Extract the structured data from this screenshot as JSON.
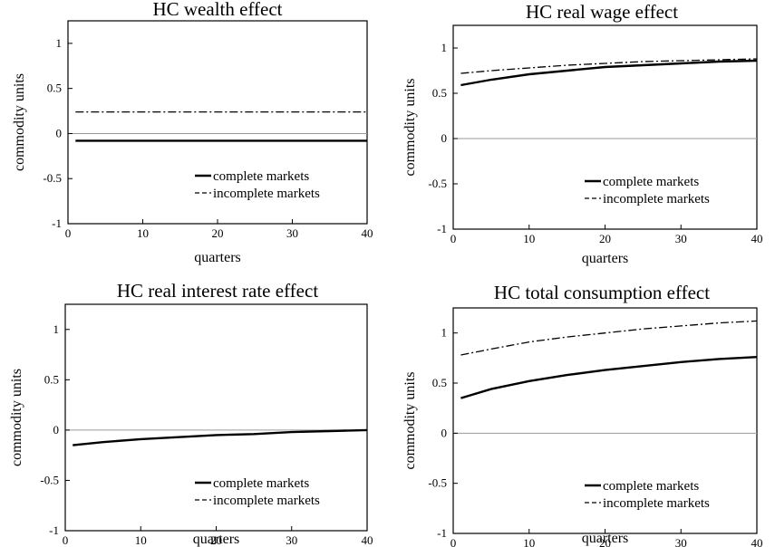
{
  "chart_data": [
    {
      "type": "line",
      "title": "HC wealth effect",
      "xlabel": "quarters",
      "ylabel": "commodity units",
      "xlim": [
        0,
        40
      ],
      "ylim": [
        -1,
        1.25
      ],
      "xticks": [
        "0",
        "10",
        "20",
        "30",
        "40"
      ],
      "yticks": [
        "-1",
        "-0.5",
        "0",
        "0.5",
        "1"
      ],
      "grid": false,
      "legend_position": "bottom-right",
      "series": [
        {
          "name": "complete markets",
          "style": "solid",
          "color": "#000000",
          "x": [
            1,
            5,
            10,
            15,
            20,
            25,
            30,
            35,
            40
          ],
          "y": [
            -0.08,
            -0.08,
            -0.08,
            -0.08,
            -0.08,
            -0.08,
            -0.08,
            -0.08,
            -0.08
          ]
        },
        {
          "name": "incomplete markets",
          "style": "dashdot",
          "color": "#000000",
          "x": [
            1,
            5,
            10,
            15,
            20,
            25,
            30,
            35,
            40
          ],
          "y": [
            0.24,
            0.24,
            0.24,
            0.24,
            0.24,
            0.24,
            0.24,
            0.24,
            0.24
          ]
        }
      ]
    },
    {
      "type": "line",
      "title": "HC real wage effect",
      "xlabel": "quarters",
      "ylabel": "commodity units",
      "xlim": [
        0,
        40
      ],
      "ylim": [
        -1,
        1.25
      ],
      "xticks": [
        "0",
        "10",
        "20",
        "30",
        "40"
      ],
      "yticks": [
        "-1",
        "-0.5",
        "0",
        "0.5",
        "1"
      ],
      "grid": false,
      "legend_position": "bottom-right",
      "series": [
        {
          "name": "complete markets",
          "style": "solid",
          "color": "#000000",
          "x": [
            1,
            5,
            10,
            15,
            20,
            25,
            30,
            35,
            40
          ],
          "y": [
            0.59,
            0.65,
            0.71,
            0.75,
            0.79,
            0.81,
            0.83,
            0.85,
            0.86
          ]
        },
        {
          "name": "incomplete markets",
          "style": "dashdot",
          "color": "#000000",
          "x": [
            1,
            5,
            10,
            15,
            20,
            25,
            30,
            35,
            40
          ],
          "y": [
            0.72,
            0.75,
            0.78,
            0.81,
            0.83,
            0.85,
            0.86,
            0.87,
            0.88
          ]
        }
      ]
    },
    {
      "type": "line",
      "title": "HC real interest rate effect",
      "xlabel": "quarters",
      "ylabel": "commodity units",
      "xlim": [
        0,
        40
      ],
      "ylim": [
        -1,
        1.25
      ],
      "xticks": [
        "0",
        "10",
        "20",
        "30",
        "40"
      ],
      "yticks": [
        "-1",
        "-0.5",
        "0",
        "0.5",
        "1"
      ],
      "grid": false,
      "legend_position": "bottom-right",
      "series": [
        {
          "name": "complete markets",
          "style": "solid",
          "color": "#000000",
          "x": [
            1,
            5,
            10,
            15,
            20,
            25,
            30,
            35,
            40
          ],
          "y": [
            -0.15,
            -0.12,
            -0.09,
            -0.07,
            -0.05,
            -0.04,
            -0.02,
            -0.01,
            0.0
          ]
        },
        {
          "name": "incomplete markets",
          "style": "dashdot",
          "color": "#000000",
          "x": [
            1,
            5,
            10,
            15,
            20,
            25,
            30,
            35,
            40
          ],
          "y": [
            -0.15,
            -0.12,
            -0.09,
            -0.07,
            -0.05,
            -0.04,
            -0.02,
            -0.01,
            0.0
          ]
        }
      ]
    },
    {
      "type": "line",
      "title": "HC total consumption effect",
      "xlabel": "quarters",
      "ylabel": "commodity units",
      "xlim": [
        0,
        40
      ],
      "ylim": [
        -1,
        1.25
      ],
      "xticks": [
        "0",
        "10",
        "20",
        "30",
        "40"
      ],
      "yticks": [
        "-1",
        "-0.5",
        "0",
        "0.5",
        "1"
      ],
      "grid": false,
      "legend_position": "bottom-right",
      "series": [
        {
          "name": "complete markets",
          "style": "solid",
          "color": "#000000",
          "x": [
            1,
            5,
            10,
            15,
            20,
            25,
            30,
            35,
            40
          ],
          "y": [
            0.35,
            0.44,
            0.52,
            0.58,
            0.63,
            0.67,
            0.71,
            0.74,
            0.76
          ]
        },
        {
          "name": "incomplete markets",
          "style": "dashdot",
          "color": "#000000",
          "x": [
            1,
            5,
            10,
            15,
            20,
            25,
            30,
            35,
            40
          ],
          "y": [
            0.78,
            0.84,
            0.91,
            0.96,
            1.0,
            1.04,
            1.07,
            1.1,
            1.12
          ]
        }
      ]
    }
  ]
}
